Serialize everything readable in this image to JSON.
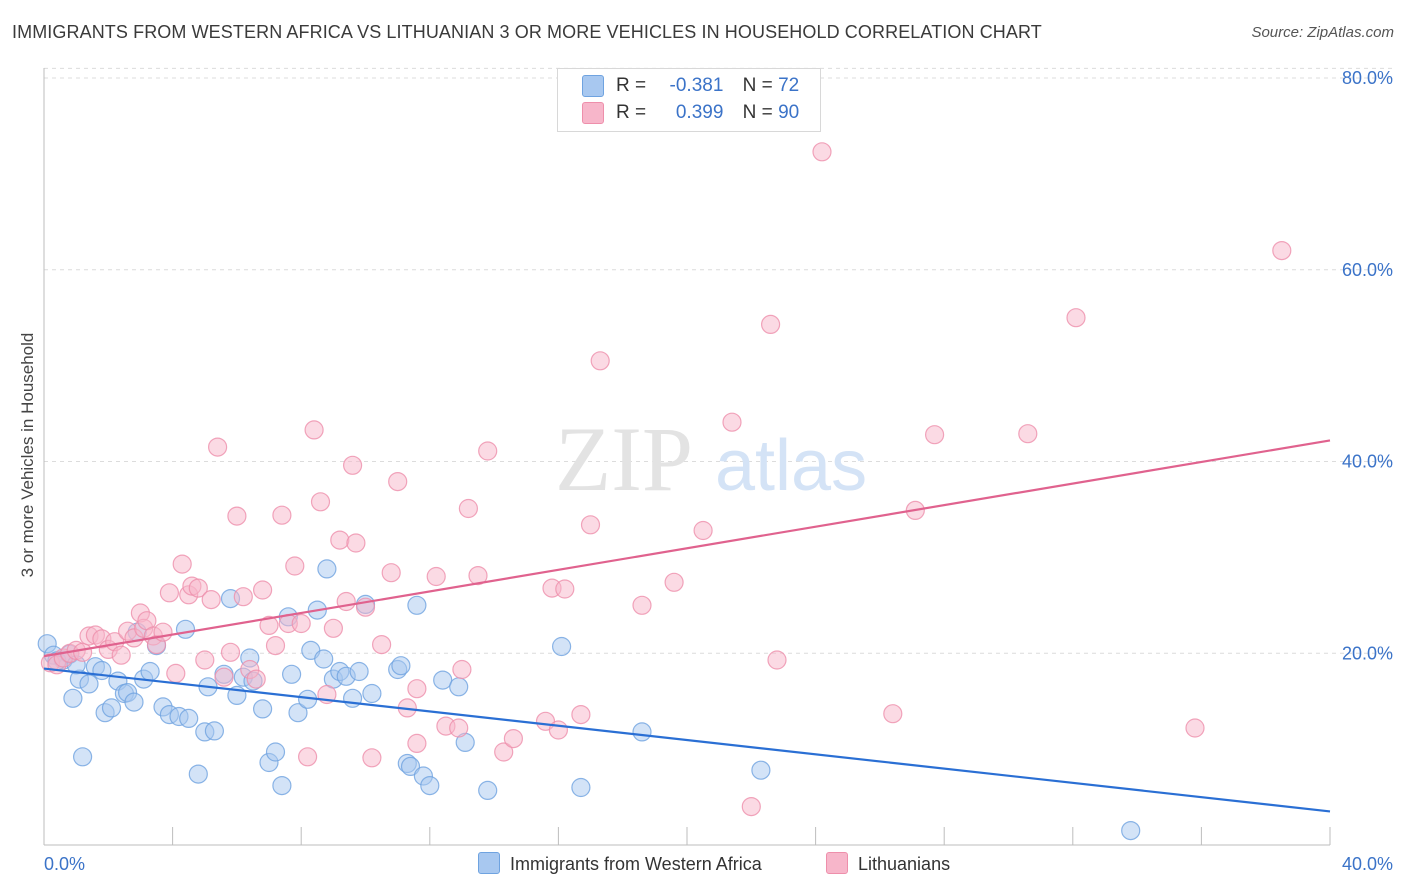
{
  "header": {
    "title": "IMMIGRANTS FROM WESTERN AFRICA VS LITHUANIAN 3 OR MORE VEHICLES IN HOUSEHOLD CORRELATION CHART",
    "source": "Source: ZipAtlas.com"
  },
  "watermark": {
    "zip": "ZIP",
    "atlas": "atlas"
  },
  "legend": {
    "rows": [
      {
        "r_label": "R =",
        "r_value": "-0.381",
        "n_label": "N =",
        "n_value": "72",
        "color": "#a8c8f0"
      },
      {
        "r_label": "R =",
        "r_value": "0.399",
        "n_label": "N =",
        "n_value": "90",
        "color": "#f7b6ca"
      }
    ]
  },
  "bottom_legend": {
    "items": [
      {
        "label": "Immigrants from Western Africa",
        "color": "#a8c8f0"
      },
      {
        "label": "Lithuanians",
        "color": "#f7b6ca"
      }
    ]
  },
  "chart_data": {
    "type": "scatter",
    "ylabel": "3 or more Vehicles in Household",
    "xlim": [
      0,
      40
    ],
    "ylim": [
      0,
      80
    ],
    "x_tick_labels": [
      "0.0%",
      "40.0%"
    ],
    "y_tick_labels": [
      "20.0%",
      "40.0%",
      "60.0%",
      "80.0%"
    ],
    "y_ticks": [
      20,
      40,
      60,
      80
    ],
    "grid": true,
    "legend_position": "top-center",
    "series": [
      {
        "name": "Immigrants from Western Africa",
        "color": "#6fa3e0",
        "fill": "#a8c8f0",
        "line_color": "#2a6fd4",
        "trend": {
          "x0": 0,
          "y0": 18.4,
          "x1": 40,
          "y1": 3.5
        },
        "points": [
          [
            0.1,
            21
          ],
          [
            0.3,
            19.8
          ],
          [
            0.6,
            19.3
          ],
          [
            0.9,
            15.3
          ],
          [
            1.1,
            17.3
          ],
          [
            1.2,
            9.2
          ],
          [
            1.4,
            16.8
          ],
          [
            1.6,
            18.6
          ],
          [
            1.8,
            18.2
          ],
          [
            1.9,
            13.8
          ],
          [
            2.1,
            14.3
          ],
          [
            2.3,
            17.1
          ],
          [
            2.5,
            15.8
          ],
          [
            2.6,
            15.9
          ],
          [
            2.8,
            14.9
          ],
          [
            2.9,
            22.2
          ],
          [
            3.1,
            17.3
          ],
          [
            3.3,
            18.1
          ],
          [
            3.5,
            20.8
          ],
          [
            3.7,
            14.4
          ],
          [
            3.9,
            13.6
          ],
          [
            4.2,
            13.4
          ],
          [
            4.4,
            22.5
          ],
          [
            4.5,
            13.2
          ],
          [
            4.8,
            7.4
          ],
          [
            5.0,
            11.8
          ],
          [
            5.1,
            16.5
          ],
          [
            5.3,
            11.9
          ],
          [
            5.6,
            17.8
          ],
          [
            5.8,
            25.7
          ],
          [
            6.0,
            15.6
          ],
          [
            6.2,
            17.5
          ],
          [
            6.4,
            19.5
          ],
          [
            6.5,
            17.1
          ],
          [
            6.8,
            14.2
          ],
          [
            7.0,
            8.6
          ],
          [
            7.2,
            9.7
          ],
          [
            7.4,
            6.2
          ],
          [
            7.6,
            23.8
          ],
          [
            7.7,
            17.8
          ],
          [
            7.9,
            13.8
          ],
          [
            8.2,
            15.2
          ],
          [
            8.3,
            20.3
          ],
          [
            8.5,
            24.5
          ],
          [
            8.7,
            19.4
          ],
          [
            8.8,
            28.8
          ],
          [
            9.0,
            17.3
          ],
          [
            9.2,
            18.1
          ],
          [
            9.4,
            17.6
          ],
          [
            9.6,
            15.3
          ],
          [
            9.8,
            18.1
          ],
          [
            10.0,
            25.1
          ],
          [
            10.2,
            15.8
          ],
          [
            11.0,
            18.3
          ],
          [
            11.1,
            18.7
          ],
          [
            11.3,
            8.5
          ],
          [
            11.4,
            8.2
          ],
          [
            11.6,
            25
          ],
          [
            11.8,
            7.2
          ],
          [
            12.0,
            6.2
          ],
          [
            12.4,
            17.2
          ],
          [
            12.9,
            16.5
          ],
          [
            13.1,
            10.7
          ],
          [
            13.8,
            5.7
          ],
          [
            16.1,
            20.7
          ],
          [
            16.7,
            6.0
          ],
          [
            18.6,
            11.8
          ],
          [
            22.3,
            7.8
          ],
          [
            33.8,
            1.5
          ],
          [
            0.4,
            19.2
          ],
          [
            0.8,
            19.9
          ],
          [
            1.0,
            18.8
          ]
        ]
      },
      {
        "name": "Lithuanians",
        "color": "#ee8fab",
        "fill": "#f7b6ca",
        "line_color": "#e0628e",
        "trend": {
          "x0": 0,
          "y0": 19.7,
          "x1": 40,
          "y1": 42.2
        },
        "points": [
          [
            0.2,
            19
          ],
          [
            0.4,
            18.8
          ],
          [
            0.6,
            19.5
          ],
          [
            0.8,
            20
          ],
          [
            1.0,
            20.3
          ],
          [
            1.2,
            20.1
          ],
          [
            1.4,
            21.8
          ],
          [
            1.6,
            21.9
          ],
          [
            1.8,
            21.5
          ],
          [
            2.0,
            20.4
          ],
          [
            2.2,
            21.2
          ],
          [
            2.4,
            19.8
          ],
          [
            2.6,
            22.3
          ],
          [
            2.8,
            21.6
          ],
          [
            3.0,
            24.2
          ],
          [
            3.1,
            22.6
          ],
          [
            3.2,
            23.4
          ],
          [
            3.4,
            21.8
          ],
          [
            3.5,
            20.9
          ],
          [
            3.7,
            22.2
          ],
          [
            3.9,
            26.3
          ],
          [
            4.1,
            17.9
          ],
          [
            4.3,
            29.3
          ],
          [
            4.5,
            26.1
          ],
          [
            4.6,
            27
          ],
          [
            4.8,
            26.8
          ],
          [
            5.0,
            19.3
          ],
          [
            5.2,
            25.6
          ],
          [
            5.4,
            41.5
          ],
          [
            5.6,
            17.5
          ],
          [
            5.8,
            20.1
          ],
          [
            6.0,
            34.3
          ],
          [
            6.2,
            25.9
          ],
          [
            6.4,
            18.3
          ],
          [
            6.6,
            17.3
          ],
          [
            6.8,
            26.6
          ],
          [
            7.0,
            22.9
          ],
          [
            7.2,
            20.8
          ],
          [
            7.4,
            34.4
          ],
          [
            7.6,
            23.1
          ],
          [
            7.8,
            29.1
          ],
          [
            8.0,
            23.1
          ],
          [
            8.2,
            9.2
          ],
          [
            8.4,
            43.3
          ],
          [
            8.6,
            35.8
          ],
          [
            8.8,
            15.7
          ],
          [
            9.0,
            22.6
          ],
          [
            9.2,
            31.8
          ],
          [
            9.4,
            25.4
          ],
          [
            9.6,
            39.6
          ],
          [
            9.7,
            31.5
          ],
          [
            10.0,
            24.8
          ],
          [
            10.2,
            9.1
          ],
          [
            10.5,
            20.9
          ],
          [
            10.8,
            28.4
          ],
          [
            11.0,
            37.9
          ],
          [
            11.3,
            14.3
          ],
          [
            11.6,
            16.3
          ],
          [
            11.6,
            10.6
          ],
          [
            12.2,
            28
          ],
          [
            12.5,
            12.4
          ],
          [
            12.9,
            12.2
          ],
          [
            13.0,
            18.3
          ],
          [
            13.2,
            35.1
          ],
          [
            13.5,
            28.1
          ],
          [
            13.8,
            41.1
          ],
          [
            14.3,
            9.7
          ],
          [
            14.6,
            11.1
          ],
          [
            15.6,
            12.9
          ],
          [
            15.8,
            26.8
          ],
          [
            16.0,
            12
          ],
          [
            16.2,
            26.7
          ],
          [
            16.7,
            13.6
          ],
          [
            17.0,
            33.4
          ],
          [
            17.3,
            50.5
          ],
          [
            18.6,
            25
          ],
          [
            19.6,
            27.4
          ],
          [
            20.5,
            32.8
          ],
          [
            21.4,
            44.1
          ],
          [
            22.0,
            4
          ],
          [
            22.6,
            54.3
          ],
          [
            22.8,
            19.3
          ],
          [
            24.2,
            72.3
          ],
          [
            26.4,
            13.7
          ],
          [
            27.1,
            34.9
          ],
          [
            27.7,
            42.8
          ],
          [
            30.6,
            42.9
          ],
          [
            32.1,
            55
          ],
          [
            35.8,
            12.2
          ],
          [
            38.5,
            62
          ]
        ]
      }
    ]
  }
}
